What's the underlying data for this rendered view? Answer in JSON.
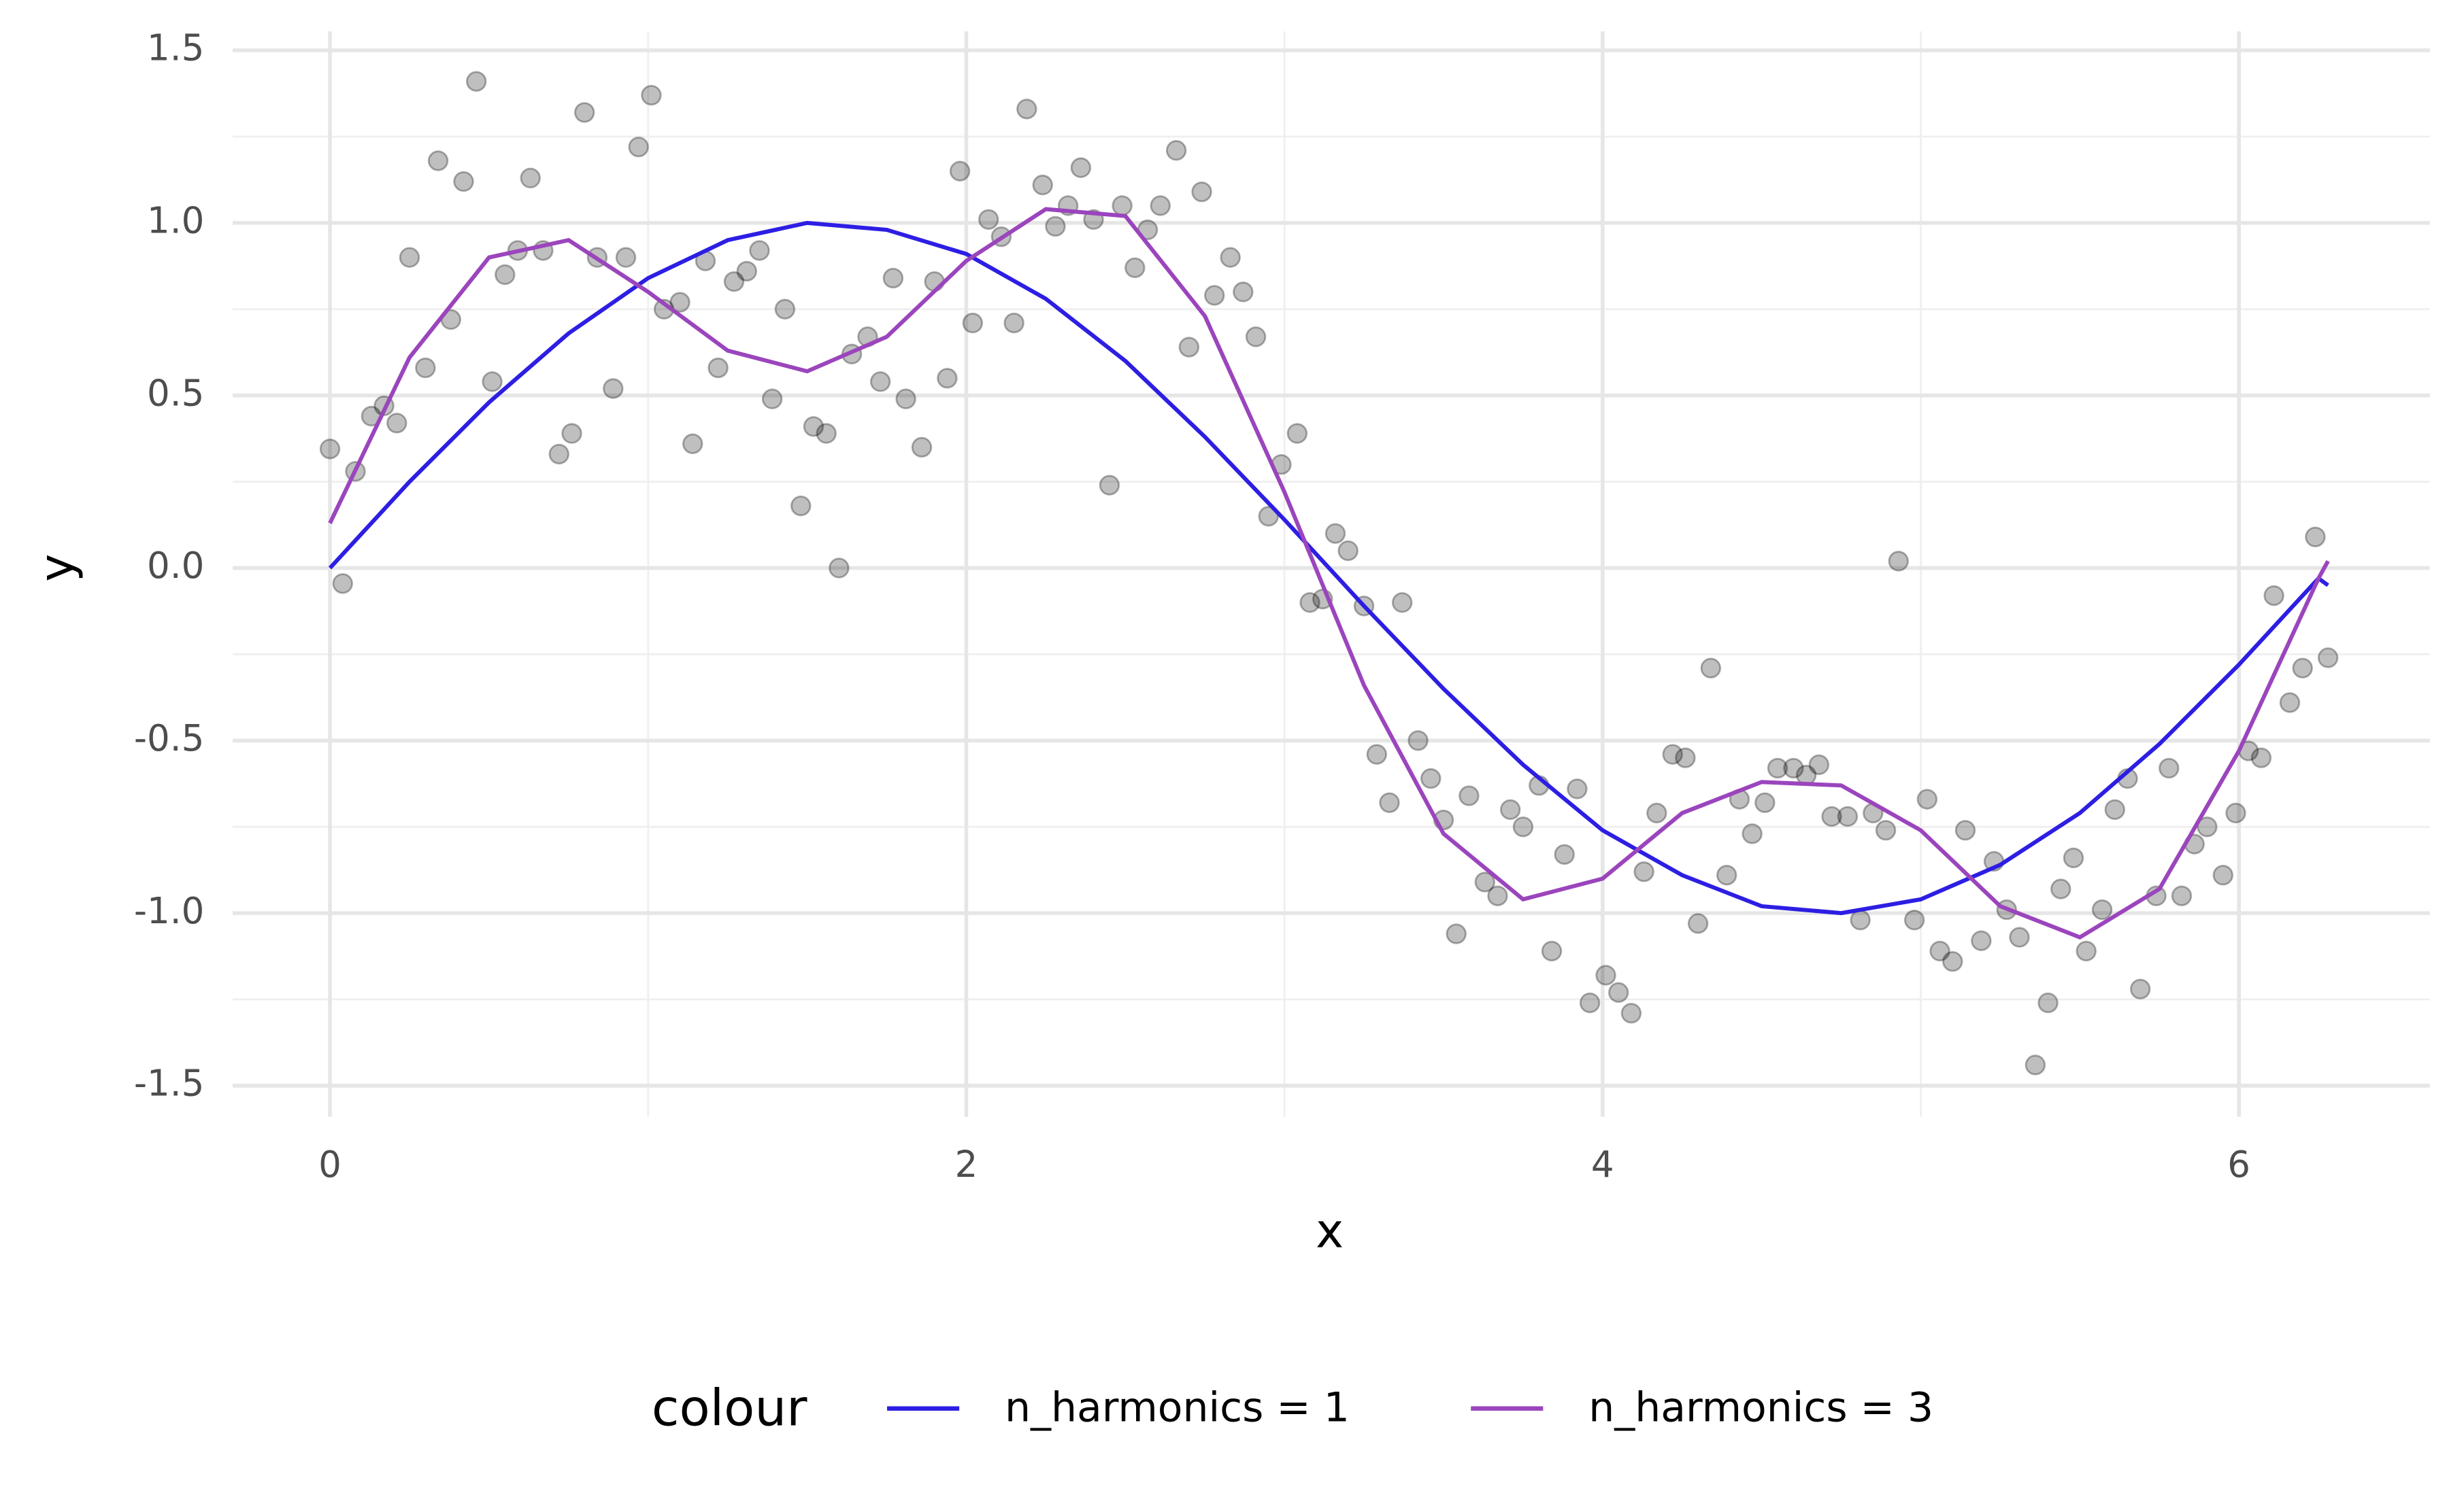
{
  "chart_data": {
    "type": "scatter",
    "x_label": "x",
    "y_label": "y",
    "legend_title": "colour",
    "xlim": [
      -0.306,
      6.6
    ],
    "ylim": [
      -1.59,
      1.555
    ],
    "xticks": [
      0,
      2,
      4,
      6
    ],
    "yticks": [
      -1.5,
      {
        "value": -1,
        "label": "-1.0"
      },
      -0.5,
      {
        "value": 0,
        "label": "0.0"
      },
      0.5,
      {
        "value": 1,
        "label": "1.0"
      },
      1.5
    ],
    "x_minor_grid": [
      1,
      3,
      5
    ],
    "y_minor_grid": [
      -1.25,
      -0.75,
      -0.25,
      0.25,
      0.75,
      1.25
    ],
    "grid": true,
    "legend": "bottom",
    "points": {
      "color": "#000000",
      "x": [
        0,
        0.04,
        0.08,
        0.13,
        0.17,
        0.21,
        0.25,
        0.3,
        0.34,
        0.38,
        0.42,
        0.46,
        0.51,
        0.55,
        0.59,
        0.63,
        0.67,
        0.72,
        0.76,
        0.8,
        0.84,
        0.89,
        0.93,
        0.97,
        1.01,
        1.05,
        1.1,
        1.14,
        1.18,
        1.22,
        1.27,
        1.31,
        1.35,
        1.39,
        1.43,
        1.48,
        1.52,
        1.56,
        1.6,
        1.64,
        1.69,
        1.73,
        1.77,
        1.81,
        1.86,
        1.9,
        1.94,
        1.98,
        2.02,
        2.07,
        2.11,
        2.15,
        2.19,
        2.24,
        2.28,
        2.32,
        2.36,
        2.4,
        2.45,
        2.49,
        2.53,
        2.57,
        2.61,
        2.66,
        2.7,
        2.74,
        2.78,
        2.83,
        2.87,
        2.91,
        2.95,
        2.99,
        3.04,
        3.08,
        3.12,
        3.16,
        3.2,
        3.25,
        3.29,
        3.33,
        3.37,
        3.42,
        3.46,
        3.5,
        3.54,
        3.58,
        3.63,
        3.67,
        3.71,
        3.75,
        3.8,
        3.84,
        3.88,
        3.92,
        3.96,
        4.01,
        4.05,
        4.09,
        4.13,
        4.17,
        4.22,
        4.26,
        4.3,
        4.34,
        4.39,
        4.43,
        4.47,
        4.51,
        4.55,
        4.6,
        4.64,
        4.68,
        4.72,
        4.77,
        4.81,
        4.85,
        4.89,
        4.93,
        4.98,
        5.02,
        5.06,
        5.1,
        5.14,
        5.19,
        5.23,
        5.27,
        5.31,
        5.36,
        5.4,
        5.44,
        5.48,
        5.52,
        5.57,
        5.61,
        5.65,
        5.69,
        5.74,
        5.78,
        5.82,
        5.86,
        5.9,
        5.95,
        5.99,
        6.03,
        6.07,
        6.11,
        6.16,
        6.2,
        6.24,
        6.28
      ],
      "values": [
        0.345,
        -0.045,
        0.28,
        0.44,
        0.47,
        0.42,
        0.9,
        0.58,
        1.18,
        0.72,
        1.12,
        1.41,
        0.54,
        0.85,
        0.92,
        1.13,
        0.92,
        0.33,
        0.39,
        1.32,
        0.9,
        0.52,
        0.9,
        1.22,
        1.37,
        0.75,
        0.77,
        0.36,
        0.89,
        0.58,
        0.83,
        0.86,
        0.92,
        0.49,
        0.75,
        0.18,
        0.41,
        0.39,
        0.0,
        0.62,
        0.67,
        0.54,
        0.84,
        0.49,
        0.35,
        0.83,
        0.55,
        1.15,
        0.71,
        1.01,
        0.96,
        0.71,
        1.33,
        1.11,
        0.99,
        1.05,
        1.16,
        1.01,
        0.24,
        1.05,
        0.87,
        0.98,
        1.05,
        1.21,
        0.64,
        1.09,
        0.79,
        0.9,
        0.8,
        0.67,
        0.15,
        0.3,
        0.39,
        -0.1,
        -0.09,
        0.1,
        0.05,
        -0.11,
        -0.54,
        -0.68,
        -0.1,
        -0.5,
        -0.61,
        -0.73,
        -1.06,
        -0.66,
        -0.91,
        -0.95,
        -0.7,
        -0.75,
        -0.63,
        -1.11,
        -0.83,
        -0.64,
        -1.26,
        -1.18,
        -1.23,
        -1.29,
        -0.88,
        -0.71,
        -0.54,
        -0.55,
        -1.03,
        -0.29,
        -0.89,
        -0.67,
        -0.77,
        -0.68,
        -0.58,
        -0.58,
        -0.6,
        -0.57,
        -0.72,
        -0.72,
        -1.02,
        -0.71,
        -0.76,
        0.02,
        -1.02,
        -0.67,
        -1.11,
        -1.14,
        -0.76,
        -1.08,
        -0.85,
        -0.99,
        -1.07,
        -1.44,
        -1.26,
        -0.93,
        -0.84,
        -1.11,
        -0.99,
        -0.7,
        -0.61,
        -1.22,
        -0.95,
        -0.58,
        -0.95,
        -0.8,
        -0.75,
        -0.89,
        -0.71,
        -0.53,
        -0.55,
        -0.08,
        -0.39,
        -0.29,
        0.09,
        -0.26
      ]
    },
    "series": [
      {
        "name": "n_harmonics = 1",
        "color": "#2d1ee3",
        "x": [
          0,
          0.25,
          0.5,
          0.75,
          1,
          1.25,
          1.5,
          1.75,
          2,
          2.25,
          2.5,
          2.75,
          3,
          3.25,
          3.5,
          3.75,
          4,
          4.25,
          4.5,
          4.75,
          5,
          5.25,
          5.5,
          5.75,
          6,
          6.25,
          6.28
        ],
        "values": [
          0,
          0.25,
          0.48,
          0.68,
          0.84,
          0.95,
          1.0,
          0.98,
          0.91,
          0.78,
          0.6,
          0.38,
          0.14,
          -0.11,
          -0.35,
          -0.57,
          -0.76,
          -0.89,
          -0.98,
          -1.0,
          -0.96,
          -0.86,
          -0.71,
          -0.51,
          -0.28,
          -0.03,
          -0.05
        ]
      },
      {
        "name": "n_harmonics = 3",
        "color": "#9b45bd",
        "x": [
          0,
          0.25,
          0.5,
          0.75,
          1,
          1.25,
          1.5,
          1.75,
          2,
          2.25,
          2.5,
          2.75,
          3,
          3.25,
          3.5,
          3.75,
          4,
          4.25,
          4.5,
          4.75,
          5,
          5.25,
          5.5,
          5.75,
          6,
          6.25,
          6.28
        ],
        "values": [
          0.13,
          0.61,
          0.9,
          0.95,
          0.8,
          0.63,
          0.57,
          0.67,
          0.89,
          1.04,
          1.02,
          0.73,
          0.22,
          -0.34,
          -0.77,
          -0.96,
          -0.9,
          -0.71,
          -0.62,
          -0.63,
          -0.76,
          -0.98,
          -1.07,
          -0.93,
          -0.53,
          -0.03,
          0.02
        ]
      }
    ]
  }
}
